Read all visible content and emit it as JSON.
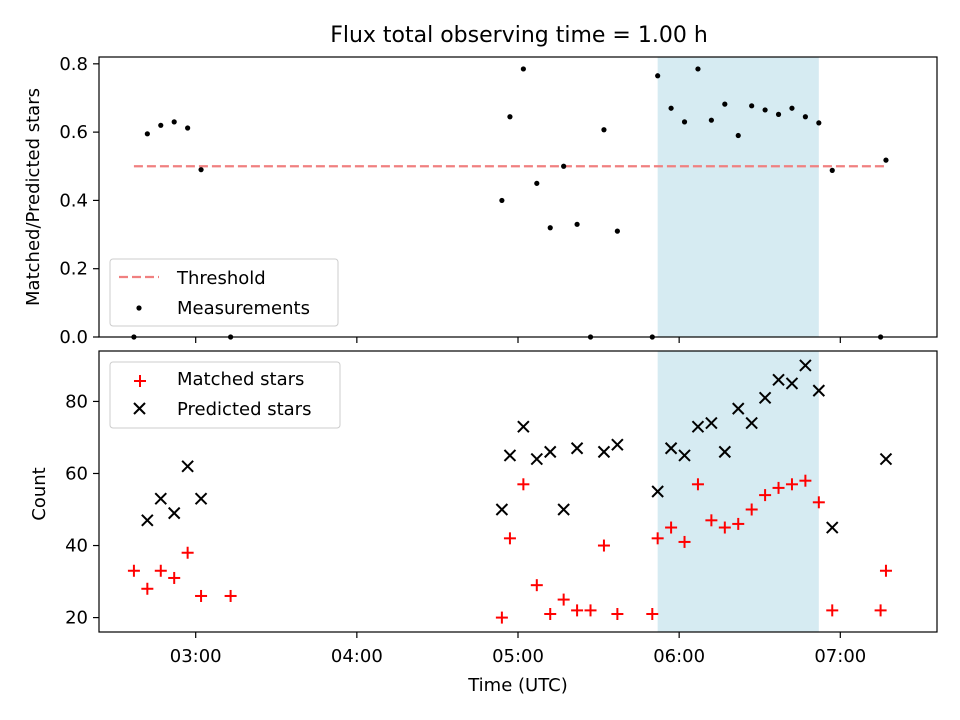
{
  "chart_data": [
    {
      "type": "scatter",
      "title": "Flux total observing time = 1.00 h",
      "ylabel": "Matched/Predicted stars",
      "xlabel": "",
      "xlim": [
        "02:24",
        "07:36"
      ],
      "ylim": [
        0,
        0.82
      ],
      "grid": false,
      "legend_position": "lower-left",
      "x_ticks": [
        "03:00",
        "04:00",
        "05:00",
        "06:00",
        "07:00"
      ],
      "y_ticks": [
        "0.0",
        "0.2",
        "0.4",
        "0.6",
        "0.8"
      ],
      "highlight_span": [
        "05:52",
        "06:52"
      ],
      "threshold": {
        "name": "Threshold",
        "value": 0.5,
        "x_range": [
          "02:37",
          "07:17"
        ],
        "color": "#f08080"
      },
      "series": [
        {
          "name": "Measurements",
          "marker": "dot",
          "color": "#000000",
          "points": [
            [
              "02:37",
              0.0
            ],
            [
              "02:42",
              0.595
            ],
            [
              "02:47",
              0.62
            ],
            [
              "02:52",
              0.63
            ],
            [
              "02:57",
              0.612
            ],
            [
              "03:02",
              0.49
            ],
            [
              "03:13",
              0.0
            ],
            [
              "04:54",
              0.4
            ],
            [
              "04:57",
              0.645
            ],
            [
              "05:02",
              0.785
            ],
            [
              "05:07",
              0.45
            ],
            [
              "05:12",
              0.32
            ],
            [
              "05:17",
              0.5
            ],
            [
              "05:22",
              0.33
            ],
            [
              "05:27",
              0.0
            ],
            [
              "05:32",
              0.607
            ],
            [
              "05:37",
              0.31
            ],
            [
              "05:50",
              0.0
            ],
            [
              "05:52",
              0.765
            ],
            [
              "05:57",
              0.67
            ],
            [
              "06:02",
              0.63
            ],
            [
              "06:07",
              0.785
            ],
            [
              "06:12",
              0.635
            ],
            [
              "06:17",
              0.682
            ],
            [
              "06:22",
              0.59
            ],
            [
              "06:27",
              0.677
            ],
            [
              "06:32",
              0.665
            ],
            [
              "06:37",
              0.652
            ],
            [
              "06:42",
              0.67
            ],
            [
              "06:47",
              0.645
            ],
            [
              "06:52",
              0.627
            ],
            [
              "06:57",
              0.488
            ],
            [
              "07:15",
              0.0
            ],
            [
              "07:17",
              0.518
            ]
          ]
        }
      ]
    },
    {
      "type": "scatter",
      "title": "",
      "ylabel": "Count",
      "xlabel": "Time (UTC)",
      "xlim": [
        "02:24",
        "07:36"
      ],
      "ylim": [
        16,
        94
      ],
      "grid": false,
      "legend_position": "upper-left",
      "x_ticks": [
        "03:00",
        "04:00",
        "05:00",
        "06:00",
        "07:00"
      ],
      "y_ticks": [
        "20",
        "40",
        "60",
        "80"
      ],
      "highlight_span": [
        "05:52",
        "06:52"
      ],
      "series": [
        {
          "name": "Matched stars",
          "marker": "plus",
          "color": "#ff0000",
          "points": [
            [
              "02:37",
              33
            ],
            [
              "02:42",
              28
            ],
            [
              "02:47",
              33
            ],
            [
              "02:52",
              31
            ],
            [
              "02:57",
              38
            ],
            [
              "03:02",
              26
            ],
            [
              "03:13",
              26
            ],
            [
              "04:54",
              20
            ],
            [
              "04:57",
              42
            ],
            [
              "05:02",
              57
            ],
            [
              "05:07",
              29
            ],
            [
              "05:12",
              21
            ],
            [
              "05:17",
              25
            ],
            [
              "05:22",
              22
            ],
            [
              "05:27",
              22
            ],
            [
              "05:32",
              40
            ],
            [
              "05:37",
              21
            ],
            [
              "05:50",
              21
            ],
            [
              "05:52",
              42
            ],
            [
              "05:57",
              45
            ],
            [
              "06:02",
              41
            ],
            [
              "06:07",
              57
            ],
            [
              "06:12",
              47
            ],
            [
              "06:17",
              45
            ],
            [
              "06:22",
              46
            ],
            [
              "06:27",
              50
            ],
            [
              "06:32",
              54
            ],
            [
              "06:37",
              56
            ],
            [
              "06:42",
              57
            ],
            [
              "06:47",
              58
            ],
            [
              "06:52",
              52
            ],
            [
              "06:57",
              22
            ],
            [
              "07:15",
              22
            ],
            [
              "07:17",
              33
            ]
          ]
        },
        {
          "name": "Predicted stars",
          "marker": "x",
          "color": "#000000",
          "points": [
            [
              "02:42",
              47
            ],
            [
              "02:47",
              53
            ],
            [
              "02:52",
              49
            ],
            [
              "02:57",
              62
            ],
            [
              "03:02",
              53
            ],
            [
              "04:54",
              50
            ],
            [
              "04:57",
              65
            ],
            [
              "05:02",
              73
            ],
            [
              "05:07",
              64
            ],
            [
              "05:12",
              66
            ],
            [
              "05:17",
              50
            ],
            [
              "05:22",
              67
            ],
            [
              "05:32",
              66
            ],
            [
              "05:37",
              68
            ],
            [
              "05:52",
              55
            ],
            [
              "05:57",
              67
            ],
            [
              "06:02",
              65
            ],
            [
              "06:07",
              73
            ],
            [
              "06:12",
              74
            ],
            [
              "06:17",
              66
            ],
            [
              "06:22",
              78
            ],
            [
              "06:27",
              74
            ],
            [
              "06:32",
              81
            ],
            [
              "06:37",
              86
            ],
            [
              "06:42",
              85
            ],
            [
              "06:47",
              90
            ],
            [
              "06:52",
              83
            ],
            [
              "06:57",
              45
            ],
            [
              "07:17",
              64
            ]
          ]
        }
      ]
    }
  ]
}
